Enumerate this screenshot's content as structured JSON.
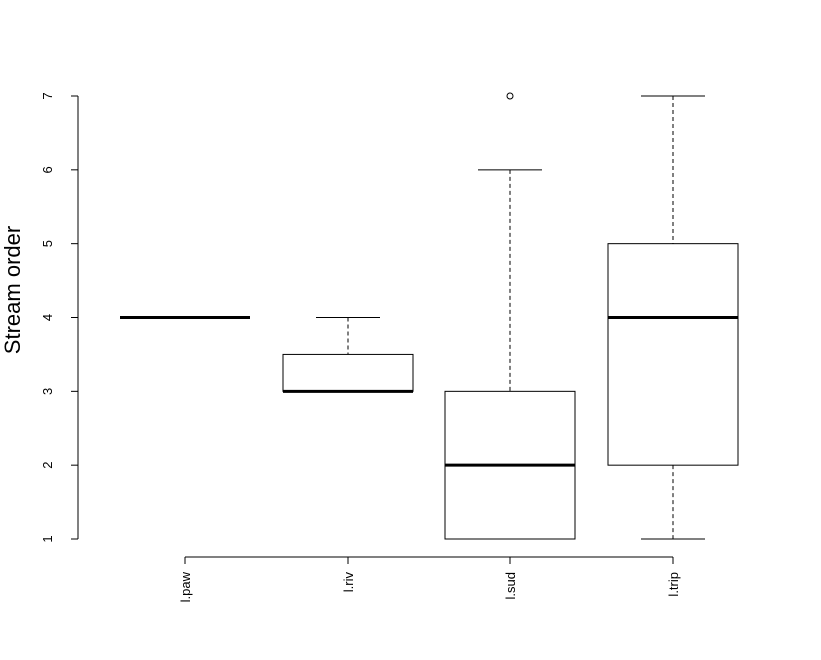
{
  "chart_data": {
    "type": "boxplot",
    "title": "",
    "xlabel": "",
    "ylabel": "Stream order",
    "ylim": [
      1,
      7
    ],
    "y_ticks": [
      1,
      2,
      3,
      4,
      5,
      6,
      7
    ],
    "categories": [
      "l.paw",
      "l.riv",
      "l.sud",
      "l.trip"
    ],
    "boxes": [
      {
        "category": "l.paw",
        "whisker_low": 4,
        "q1": 4,
        "median": 4,
        "q3": 4,
        "whisker_high": 4,
        "outliers": []
      },
      {
        "category": "l.riv",
        "whisker_low": 3,
        "q1": 3,
        "median": 3,
        "q3": 3.5,
        "whisker_high": 4,
        "outliers": []
      },
      {
        "category": "l.sud",
        "whisker_low": 1,
        "q1": 1,
        "median": 2,
        "q3": 3,
        "whisker_high": 6,
        "outliers": [
          7
        ]
      },
      {
        "category": "l.trip",
        "whisker_low": 1,
        "q1": 2,
        "median": 4,
        "q3": 5,
        "whisker_high": 7,
        "outliers": []
      }
    ],
    "grid": false,
    "legend": "none",
    "colors": {
      "box_fill": "#ffffff",
      "stroke": "#000000"
    }
  }
}
